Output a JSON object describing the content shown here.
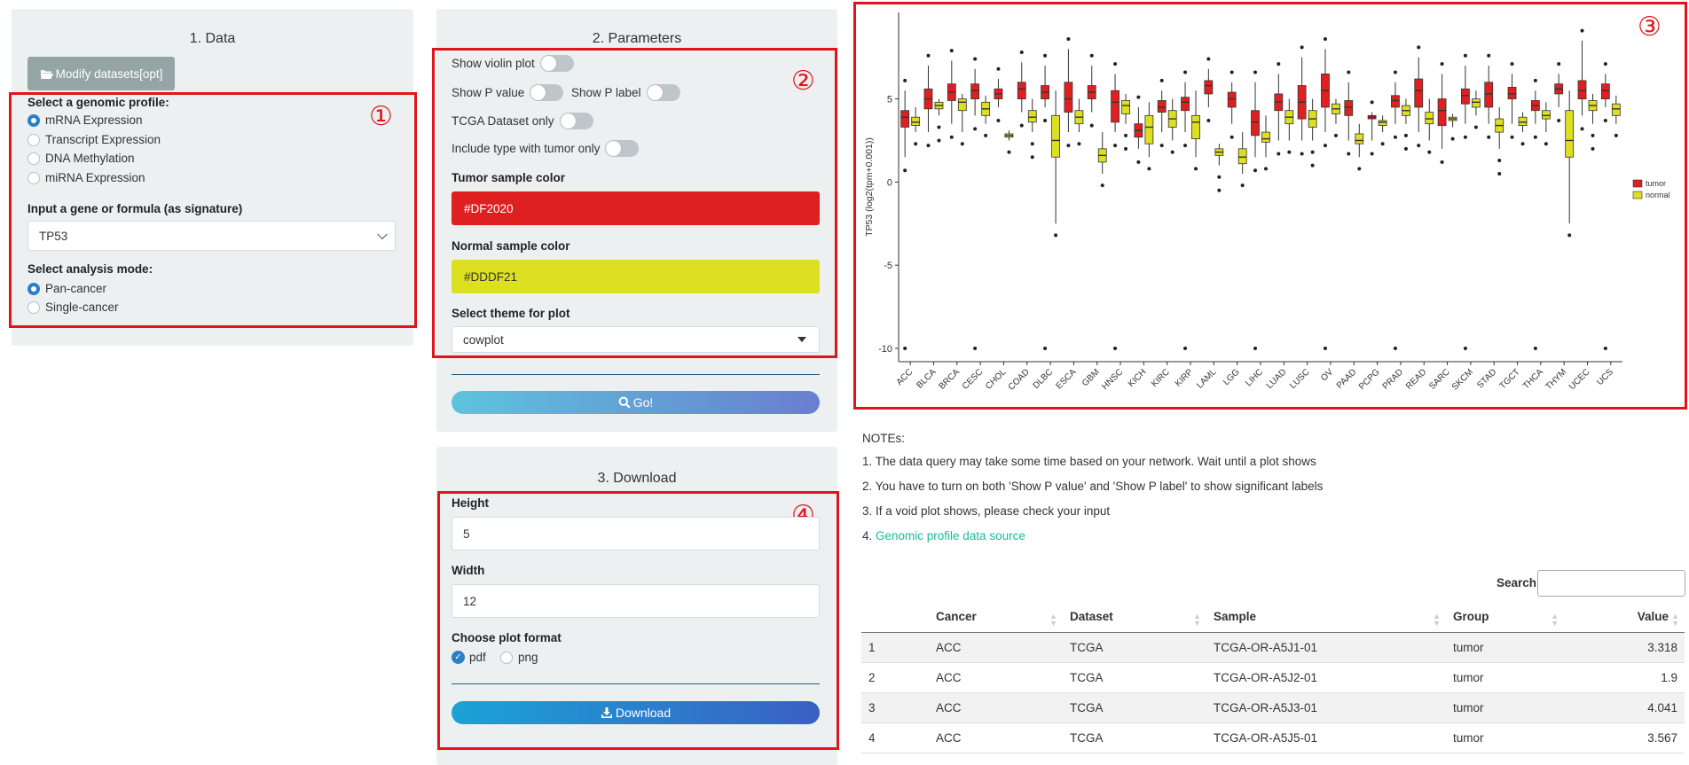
{
  "data_panel": {
    "title": "1. Data",
    "modify_button": "Modify datasets[opt]",
    "profile_label": "Select a genomic profile:",
    "profiles": [
      {
        "label": "mRNA Expression",
        "selected": true
      },
      {
        "label": "Transcript Expression",
        "selected": false
      },
      {
        "label": "DNA Methylation",
        "selected": false
      },
      {
        "label": "miRNA Expression",
        "selected": false
      }
    ],
    "gene_label": "Input a gene or formula (as signature)",
    "gene_value": "TP53",
    "mode_label": "Select analysis mode:",
    "modes": [
      {
        "label": "Pan-cancer",
        "selected": true
      },
      {
        "label": "Single-cancer",
        "selected": false
      }
    ],
    "marker": "①"
  },
  "params_panel": {
    "title": "2. Parameters",
    "marker": "②",
    "toggles": {
      "violin": "Show violin plot",
      "pvalue": "Show P value",
      "plabel": "Show P label",
      "tcga_only": "TCGA Dataset only",
      "tumor_only": "Include type with tumor only"
    },
    "tumor_color_label": "Tumor sample color",
    "tumor_color": "#DF2020",
    "normal_color_label": "Normal sample color",
    "normal_color": "#DDDF21",
    "theme_label": "Select theme for plot",
    "theme_value": "cowplot",
    "go_button": "Go!"
  },
  "download_panel": {
    "title": "3. Download",
    "marker": "④",
    "height_label": "Height",
    "height_value": "5",
    "width_label": "Width",
    "width_value": "12",
    "format_label": "Choose plot format",
    "formats": [
      {
        "label": "pdf",
        "selected": true
      },
      {
        "label": "png",
        "selected": false
      }
    ],
    "download_button": "Download"
  },
  "plot_marker": "③",
  "chart_data": {
    "type": "boxplot",
    "ylabel": "TP53 (log2(tpm+0.001))",
    "ylim": [
      -10.8,
      10.2
    ],
    "yticks": [
      -10,
      -5,
      0,
      5
    ],
    "legend": {
      "position": "right",
      "entries": [
        {
          "name": "tumor",
          "color": "#DF2020"
        },
        {
          "name": "normal",
          "color": "#DDDF21"
        }
      ]
    },
    "grid": false,
    "categories": [
      "ACC",
      "BLCA",
      "BRCA",
      "CESC",
      "CHOL",
      "COAD",
      "DLBC",
      "ESCA",
      "GBM",
      "HNSC",
      "KICH",
      "KIRC",
      "KIRP",
      "LAML",
      "LGG",
      "LIHC",
      "LUAD",
      "LUSC",
      "OV",
      "PAAD",
      "PCPG",
      "PRAD",
      "READ",
      "SARC",
      "SKCM",
      "STAD",
      "TGCT",
      "THCA",
      "THYM",
      "UCEC",
      "UCS"
    ],
    "series": [
      {
        "name": "tumor",
        "color": "#DF2020",
        "boxes": [
          [
            1.5,
            3.3,
            3.9,
            4.3,
            5.5
          ],
          [
            3.0,
            4.4,
            5.0,
            5.6,
            7.0
          ],
          [
            3.5,
            4.9,
            5.4,
            5.9,
            7.3
          ],
          [
            4.0,
            5.0,
            5.5,
            5.9,
            6.8
          ],
          [
            4.5,
            5.0,
            5.3,
            5.6,
            6.2
          ],
          [
            4.2,
            5.0,
            5.6,
            6.0,
            7.2
          ],
          [
            4.5,
            5.0,
            5.4,
            5.8,
            7.0
          ],
          [
            3.0,
            4.2,
            5.0,
            6.0,
            8.0
          ],
          [
            4.2,
            5.0,
            5.4,
            5.8,
            7.0
          ],
          [
            3.0,
            3.6,
            4.8,
            5.5,
            6.5
          ],
          [
            2.0,
            2.7,
            3.1,
            3.5,
            4.5
          ],
          [
            3.0,
            4.2,
            4.5,
            4.9,
            5.5
          ],
          [
            3.0,
            4.3,
            4.8,
            5.1,
            6.0
          ],
          [
            4.5,
            5.3,
            5.8,
            6.1,
            6.8
          ],
          [
            3.5,
            4.5,
            5.0,
            5.4,
            6.0
          ],
          [
            1.5,
            2.8,
            3.6,
            4.3,
            6.0
          ],
          [
            2.5,
            4.3,
            4.8,
            5.3,
            6.5
          ],
          [
            2.5,
            3.8,
            4.8,
            5.8,
            7.5
          ],
          [
            3.0,
            4.5,
            5.5,
            6.5,
            8.0
          ],
          [
            2.5,
            4.0,
            4.5,
            4.9,
            6.0
          ],
          [
            2.5,
            3.8,
            3.9,
            4.0,
            4.2
          ],
          [
            3.5,
            4.5,
            4.9,
            5.2,
            6.0
          ],
          [
            3.0,
            4.5,
            5.5,
            6.2,
            7.5
          ],
          [
            2.0,
            3.4,
            4.3,
            5.0,
            6.5
          ],
          [
            3.5,
            4.7,
            5.2,
            5.6,
            7.0
          ],
          [
            3.5,
            4.5,
            5.3,
            6.0,
            7.0
          ],
          [
            3.5,
            5.0,
            5.3,
            5.7,
            6.5
          ],
          [
            3.5,
            4.3,
            4.6,
            4.9,
            5.5
          ],
          [
            4.5,
            5.3,
            5.6,
            5.9,
            6.5
          ],
          [
            4.0,
            5.0,
            5.5,
            6.1,
            8.5
          ],
          [
            4.5,
            5.0,
            5.5,
            5.9,
            6.5
          ]
        ]
      },
      {
        "name": "normal",
        "color": "#DDDF21",
        "boxes": [
          [
            3.0,
            3.4,
            3.6,
            3.9,
            4.5
          ],
          [
            4.0,
            4.4,
            4.6,
            4.8,
            5.0
          ],
          [
            3.0,
            4.3,
            4.8,
            5.0,
            5.3
          ],
          [
            3.5,
            4.0,
            4.4,
            4.8,
            5.2
          ],
          [
            2.5,
            2.7,
            2.8,
            2.9,
            3.1
          ],
          [
            3.0,
            3.6,
            3.9,
            4.3,
            5.0
          ],
          [
            -2.5,
            1.5,
            2.5,
            4.0,
            5.5
          ],
          [
            3.0,
            3.5,
            3.9,
            4.3,
            5.0
          ],
          [
            0.5,
            1.2,
            1.6,
            2.0,
            3.0
          ],
          [
            3.5,
            4.1,
            4.6,
            4.9,
            5.3
          ],
          [
            1.5,
            2.3,
            3.3,
            4.0,
            4.8
          ],
          [
            2.5,
            3.3,
            3.8,
            4.3,
            5.0
          ],
          [
            1.5,
            2.6,
            3.6,
            4.0,
            5.5
          ],
          [
            1.0,
            1.6,
            1.8,
            2.0,
            2.3
          ],
          [
            0.5,
            1.1,
            1.5,
            2.0,
            3.0
          ],
          [
            1.5,
            2.4,
            2.6,
            3.0,
            4.0
          ],
          [
            2.5,
            3.5,
            3.9,
            4.3,
            5.0
          ],
          [
            2.5,
            3.3,
            3.8,
            4.3,
            5.0
          ],
          [
            3.5,
            4.1,
            4.4,
            4.7,
            5.0
          ],
          [
            1.5,
            2.3,
            2.5,
            2.9,
            3.5
          ],
          [
            3.0,
            3.4,
            3.6,
            3.7,
            4.0
          ],
          [
            3.5,
            4.0,
            4.3,
            4.6,
            5.0
          ],
          [
            2.5,
            3.5,
            3.8,
            4.2,
            5.0
          ],
          [
            3.3,
            3.7,
            3.8,
            3.9,
            4.1
          ],
          [
            4.0,
            4.5,
            4.8,
            5.0,
            5.5
          ],
          [
            2.0,
            3.0,
            3.4,
            3.8,
            4.5
          ],
          [
            3.0,
            3.4,
            3.6,
            3.9,
            4.2
          ],
          [
            3.0,
            3.8,
            4.0,
            4.3,
            4.8
          ],
          [
            -2.5,
            1.5,
            2.5,
            4.3,
            5.5
          ],
          [
            3.5,
            4.3,
            4.6,
            4.9,
            5.3
          ],
          [
            3.5,
            4.0,
            4.4,
            4.7,
            5.2
          ]
        ]
      }
    ],
    "outliers": [
      -10,
      0.5,
      1.0,
      1.5,
      6.5,
      7.5,
      8.5,
      9.0
    ]
  },
  "notes": {
    "title": "NOTEs:",
    "items": [
      "1. The data query may take some time based on your network. Wait until a plot shows",
      "2. You have to turn on both 'Show P value' and 'Show P label' to show significant labels",
      "3. If a void plot shows, please check your input",
      "4. "
    ],
    "link": "Genomic profile data source"
  },
  "table": {
    "search_label": "Search:",
    "columns": [
      "",
      "Cancer",
      "Dataset",
      "Sample",
      "Group",
      "Value"
    ],
    "rows": [
      [
        "1",
        "ACC",
        "TCGA",
        "TCGA-OR-A5J1-01",
        "tumor",
        "3.318"
      ],
      [
        "2",
        "ACC",
        "TCGA",
        "TCGA-OR-A5J2-01",
        "tumor",
        "1.9"
      ],
      [
        "3",
        "ACC",
        "TCGA",
        "TCGA-OR-A5J3-01",
        "tumor",
        "4.041"
      ],
      [
        "4",
        "ACC",
        "TCGA",
        "TCGA-OR-A5J5-01",
        "tumor",
        "3.567"
      ]
    ]
  },
  "icons": {
    "folder": "folder-open-icon",
    "search": "search-icon",
    "download": "download-icon",
    "dropdown": "chevron-down-icon"
  }
}
